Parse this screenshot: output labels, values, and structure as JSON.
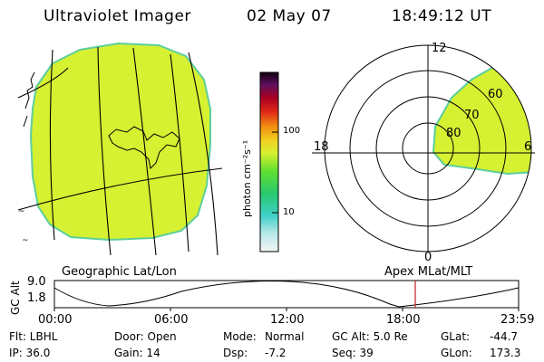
{
  "header": {
    "title": "Ultraviolet Imager",
    "date": "02 May 07",
    "time": "18:49:12 UT"
  },
  "colorbar": {
    "unit_label": "photon cm⁻²s⁻¹",
    "ticks": [
      "100",
      "10"
    ]
  },
  "polar": {
    "labels": {
      "top": "12",
      "left": "18",
      "right": "6",
      "bottom": "0"
    },
    "lat_labels": [
      "60",
      "70",
      "80"
    ]
  },
  "left_panel": {
    "caption": "Geographic Lat/Lon"
  },
  "right_panel": {
    "caption": "Apex MLat/MLT"
  },
  "altplot": {
    "ylabel": "GC Alt",
    "yticks": [
      "9.0",
      "1.8"
    ],
    "xticks": [
      "00:00",
      "06:00",
      "12:00",
      "18:00",
      "23:59"
    ]
  },
  "footer": {
    "row1": {
      "flt": "Flt: LBHL",
      "door": "Door: Open",
      "mode_label": "Mode:",
      "mode_value": "Normal",
      "gcalt": "GC Alt: 5.0 Re",
      "glat_label": "GLat:",
      "glat_value": "-44.7"
    },
    "row2": {
      "ip": "IP: 36.0",
      "gain": "Gain: 14",
      "dsp_label": "Dsp:",
      "dsp_value": "-7.2",
      "seq": "Seq: 39",
      "glon_label": "GLon:",
      "glon_value": "173.3"
    }
  },
  "colors": {
    "aurora": "#d4f030",
    "aurora_edge": "#6fd0a0",
    "marker": "#c81e1e"
  }
}
